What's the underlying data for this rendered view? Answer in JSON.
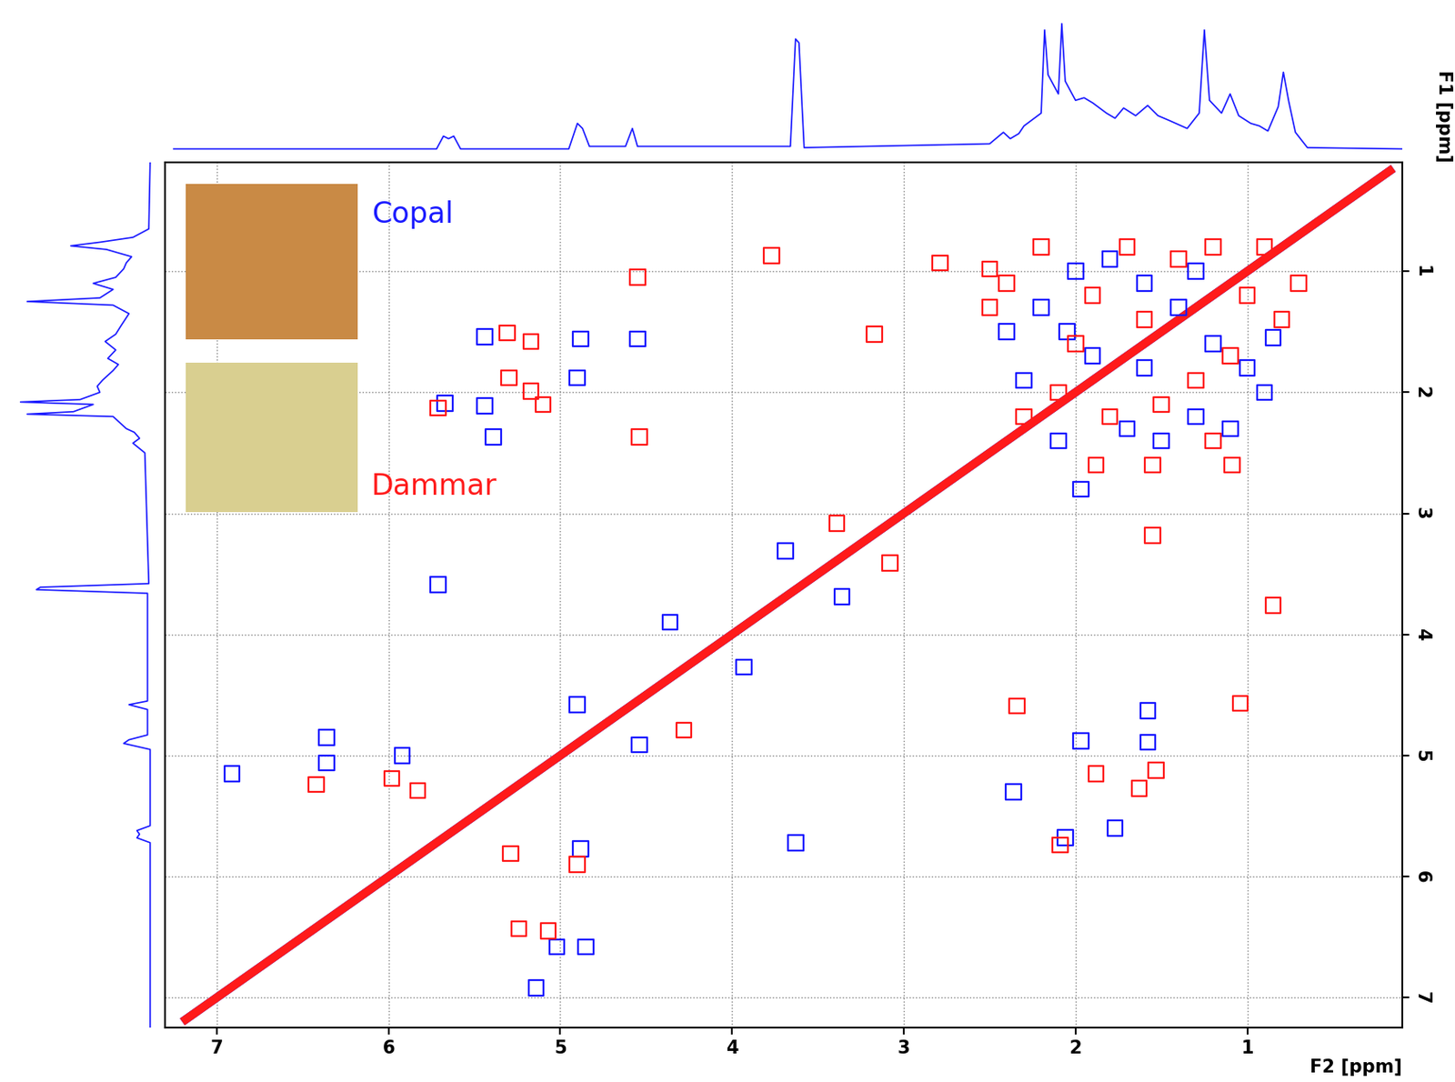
{
  "chart_data": {
    "type": "scatter",
    "x_label": "F2 [ppm]",
    "y_label": "F1 [ppm]",
    "xlim": [
      7.3,
      0.1
    ],
    "ylim": [
      7.25,
      0.1
    ],
    "xticks": [
      7,
      6,
      5,
      4,
      3,
      2,
      1
    ],
    "yticks": [
      1,
      2,
      3,
      4,
      5,
      6,
      7
    ],
    "grid": true,
    "diagonal": {
      "x": [
        0.15,
        7.2
      ],
      "y": [
        0.15,
        7.2
      ]
    },
    "projection": {
      "color": "#1a1aff",
      "ylim": [
        0,
        110
      ],
      "x": [
        7.25,
        5.72,
        5.68,
        5.65,
        5.62,
        5.58,
        4.95,
        4.9,
        4.87,
        4.83,
        4.62,
        4.58,
        4.55,
        3.66,
        3.63,
        3.61,
        3.58,
        2.5,
        2.42,
        2.38,
        2.33,
        2.3,
        2.2,
        2.18,
        2.16,
        2.1,
        2.08,
        2.06,
        2.0,
        1.95,
        1.9,
        1.82,
        1.77,
        1.72,
        1.65,
        1.58,
        1.52,
        1.45,
        1.35,
        1.28,
        1.25,
        1.22,
        1.15,
        1.1,
        1.05,
        0.98,
        0.93,
        0.88,
        0.82,
        0.79,
        0.76,
        0.72,
        0.65,
        0.1
      ],
      "intensity": [
        2,
        2,
        12,
        10,
        12,
        2,
        2,
        22,
        18,
        4,
        4,
        18,
        4,
        4,
        88,
        85,
        3,
        6,
        15,
        10,
        14,
        20,
        30,
        95,
        60,
        45,
        100,
        55,
        40,
        42,
        38,
        30,
        26,
        34,
        28,
        36,
        28,
        24,
        18,
        30,
        95,
        40,
        30,
        45,
        28,
        22,
        20,
        16,
        35,
        62,
        40,
        15,
        3,
        2
      ]
    },
    "series": [
      {
        "name": "Copal",
        "color": "#1a1aff",
        "marker": "s",
        "x": [
          6.91,
          6.36,
          6.36,
          5.92,
          5.14,
          5.02,
          4.85,
          4.88,
          4.9,
          4.54,
          5.71,
          4.36,
          3.93,
          3.63,
          3.69,
          3.36,
          1.77,
          1.58,
          1.58,
          2.36,
          2.06,
          1.97,
          5.39,
          5.44,
          5.67,
          4.88,
          4.55,
          4.9,
          5.44,
          1.97,
          2.4,
          2.2,
          2.0,
          1.8,
          1.6,
          1.4,
          1.2,
          1.0,
          0.9,
          1.1,
          1.3,
          1.5,
          1.7,
          1.9,
          2.3,
          2.1,
          1.6,
          1.3,
          0.85,
          2.05
        ],
        "y": [
          5.15,
          4.85,
          5.06,
          5.0,
          6.92,
          6.58,
          6.58,
          5.77,
          4.58,
          4.91,
          3.59,
          3.9,
          4.27,
          5.72,
          3.31,
          3.69,
          5.6,
          4.63,
          4.89,
          5.3,
          5.68,
          4.88,
          2.37,
          2.11,
          2.09,
          1.56,
          1.56,
          1.88,
          1.54,
          2.8,
          1.5,
          1.3,
          1.0,
          0.9,
          1.1,
          1.3,
          1.6,
          1.8,
          2.0,
          2.3,
          2.2,
          2.4,
          2.3,
          1.7,
          1.9,
          2.4,
          1.8,
          1.0,
          1.55,
          1.5
        ]
      },
      {
        "name": "Dammar",
        "color": "#ff1a1a",
        "marker": "s",
        "x": [
          6.42,
          5.98,
          5.83,
          5.29,
          5.24,
          5.07,
          4.9,
          4.28,
          3.39,
          3.08,
          3.77,
          3.17,
          2.79,
          2.5,
          4.54,
          4.55,
          5.31,
          5.17,
          5.71,
          5.3,
          5.17,
          5.1,
          1.88,
          1.55,
          1.09,
          1.55,
          1.88,
          1.63,
          1.53,
          2.09,
          2.34,
          1.04,
          0.85,
          2.4,
          2.2,
          1.9,
          1.7,
          1.4,
          1.2,
          1.0,
          0.8,
          1.1,
          1.3,
          1.5,
          1.8,
          2.1,
          2.3,
          0.9,
          1.6,
          2.0,
          1.2,
          0.7,
          2.5
        ],
        "y": [
          5.24,
          5.19,
          5.29,
          5.81,
          6.43,
          6.45,
          5.9,
          4.79,
          3.08,
          3.41,
          0.87,
          1.52,
          0.93,
          0.98,
          2.37,
          1.05,
          1.51,
          1.58,
          2.13,
          1.88,
          1.99,
          2.1,
          2.6,
          2.6,
          2.6,
          3.18,
          5.15,
          5.27,
          5.12,
          5.74,
          4.59,
          4.57,
          3.76,
          1.1,
          0.8,
          1.2,
          0.8,
          0.9,
          0.8,
          1.2,
          1.4,
          1.7,
          1.9,
          2.1,
          2.2,
          2.0,
          2.2,
          0.8,
          1.4,
          1.6,
          2.4,
          1.1,
          1.3
        ]
      }
    ]
  }
}
